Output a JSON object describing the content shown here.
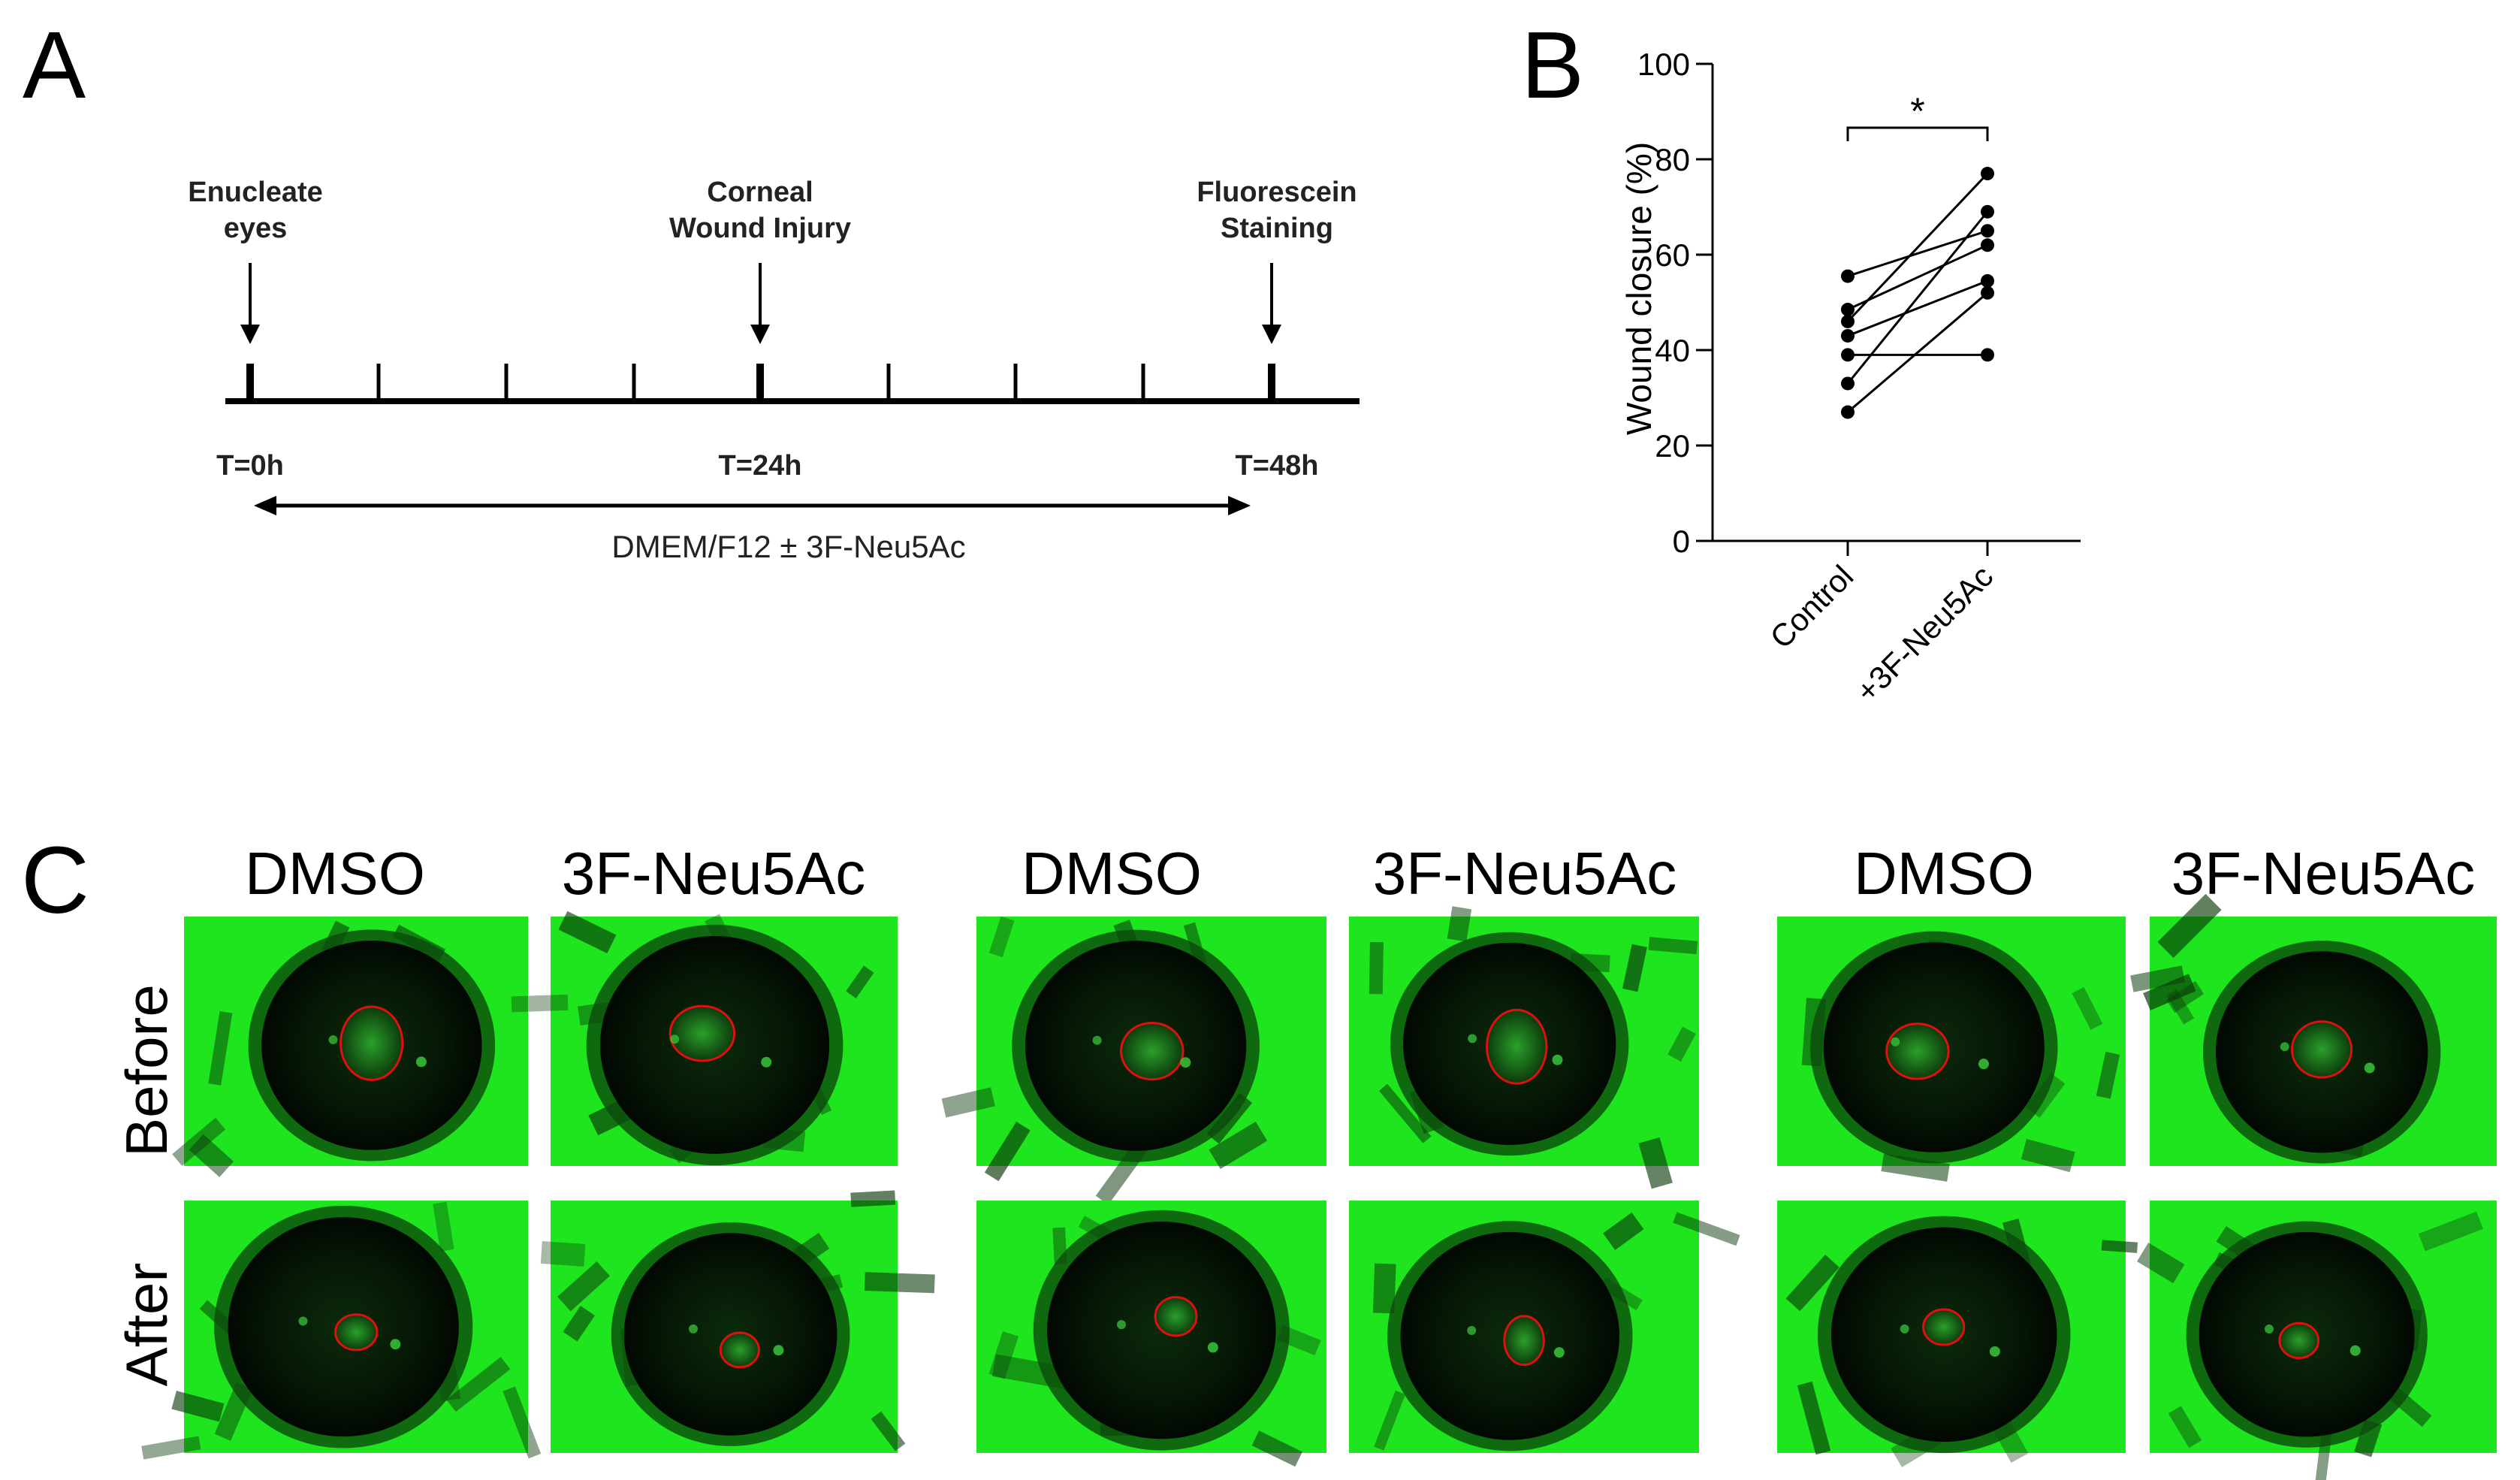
{
  "panels": {
    "a": {
      "letter": "A",
      "events": [
        {
          "line1": "Enucleate",
          "line2": "eyes"
        },
        {
          "line1": "Corneal",
          "line2": "Wound Injury"
        },
        {
          "line1": "Fluorescein",
          "line2": "Staining"
        }
      ],
      "time_labels": [
        "T=0h",
        "T=24h",
        "T=48h"
      ],
      "treatment": "DMEM/F12 ± 3F-Neu5Ac"
    },
    "b": {
      "letter": "B",
      "significance": "*"
    },
    "c": {
      "letter": "C",
      "column_labels": [
        "DMSO",
        "3F-Neu5Ac",
        "DMSO",
        "3F-Neu5Ac",
        "DMSO",
        "3F-Neu5Ac"
      ],
      "row_labels": [
        "Before",
        "After"
      ]
    }
  },
  "chart_data": {
    "type": "scatter",
    "categories": [
      "Control",
      "+3F-Neu5Ac"
    ],
    "ylabel": "Wound closure (%)",
    "ylim": [
      0,
      100
    ],
    "yticks": [
      0,
      20,
      40,
      60,
      80,
      100
    ],
    "paired_points": [
      [
        55.5,
        65
      ],
      [
        48.5,
        62
      ],
      [
        46,
        77
      ],
      [
        43,
        54.5
      ],
      [
        39,
        39
      ],
      [
        33,
        69
      ],
      [
        27,
        52
      ]
    ],
    "significance_bracket": {
      "between": [
        "Control",
        "+3F-Neu5Ac"
      ],
      "label": "*"
    }
  },
  "colors": {
    "stain_green": "#1fe51f",
    "wound_outline": "#e01010",
    "ink": "#000000"
  }
}
